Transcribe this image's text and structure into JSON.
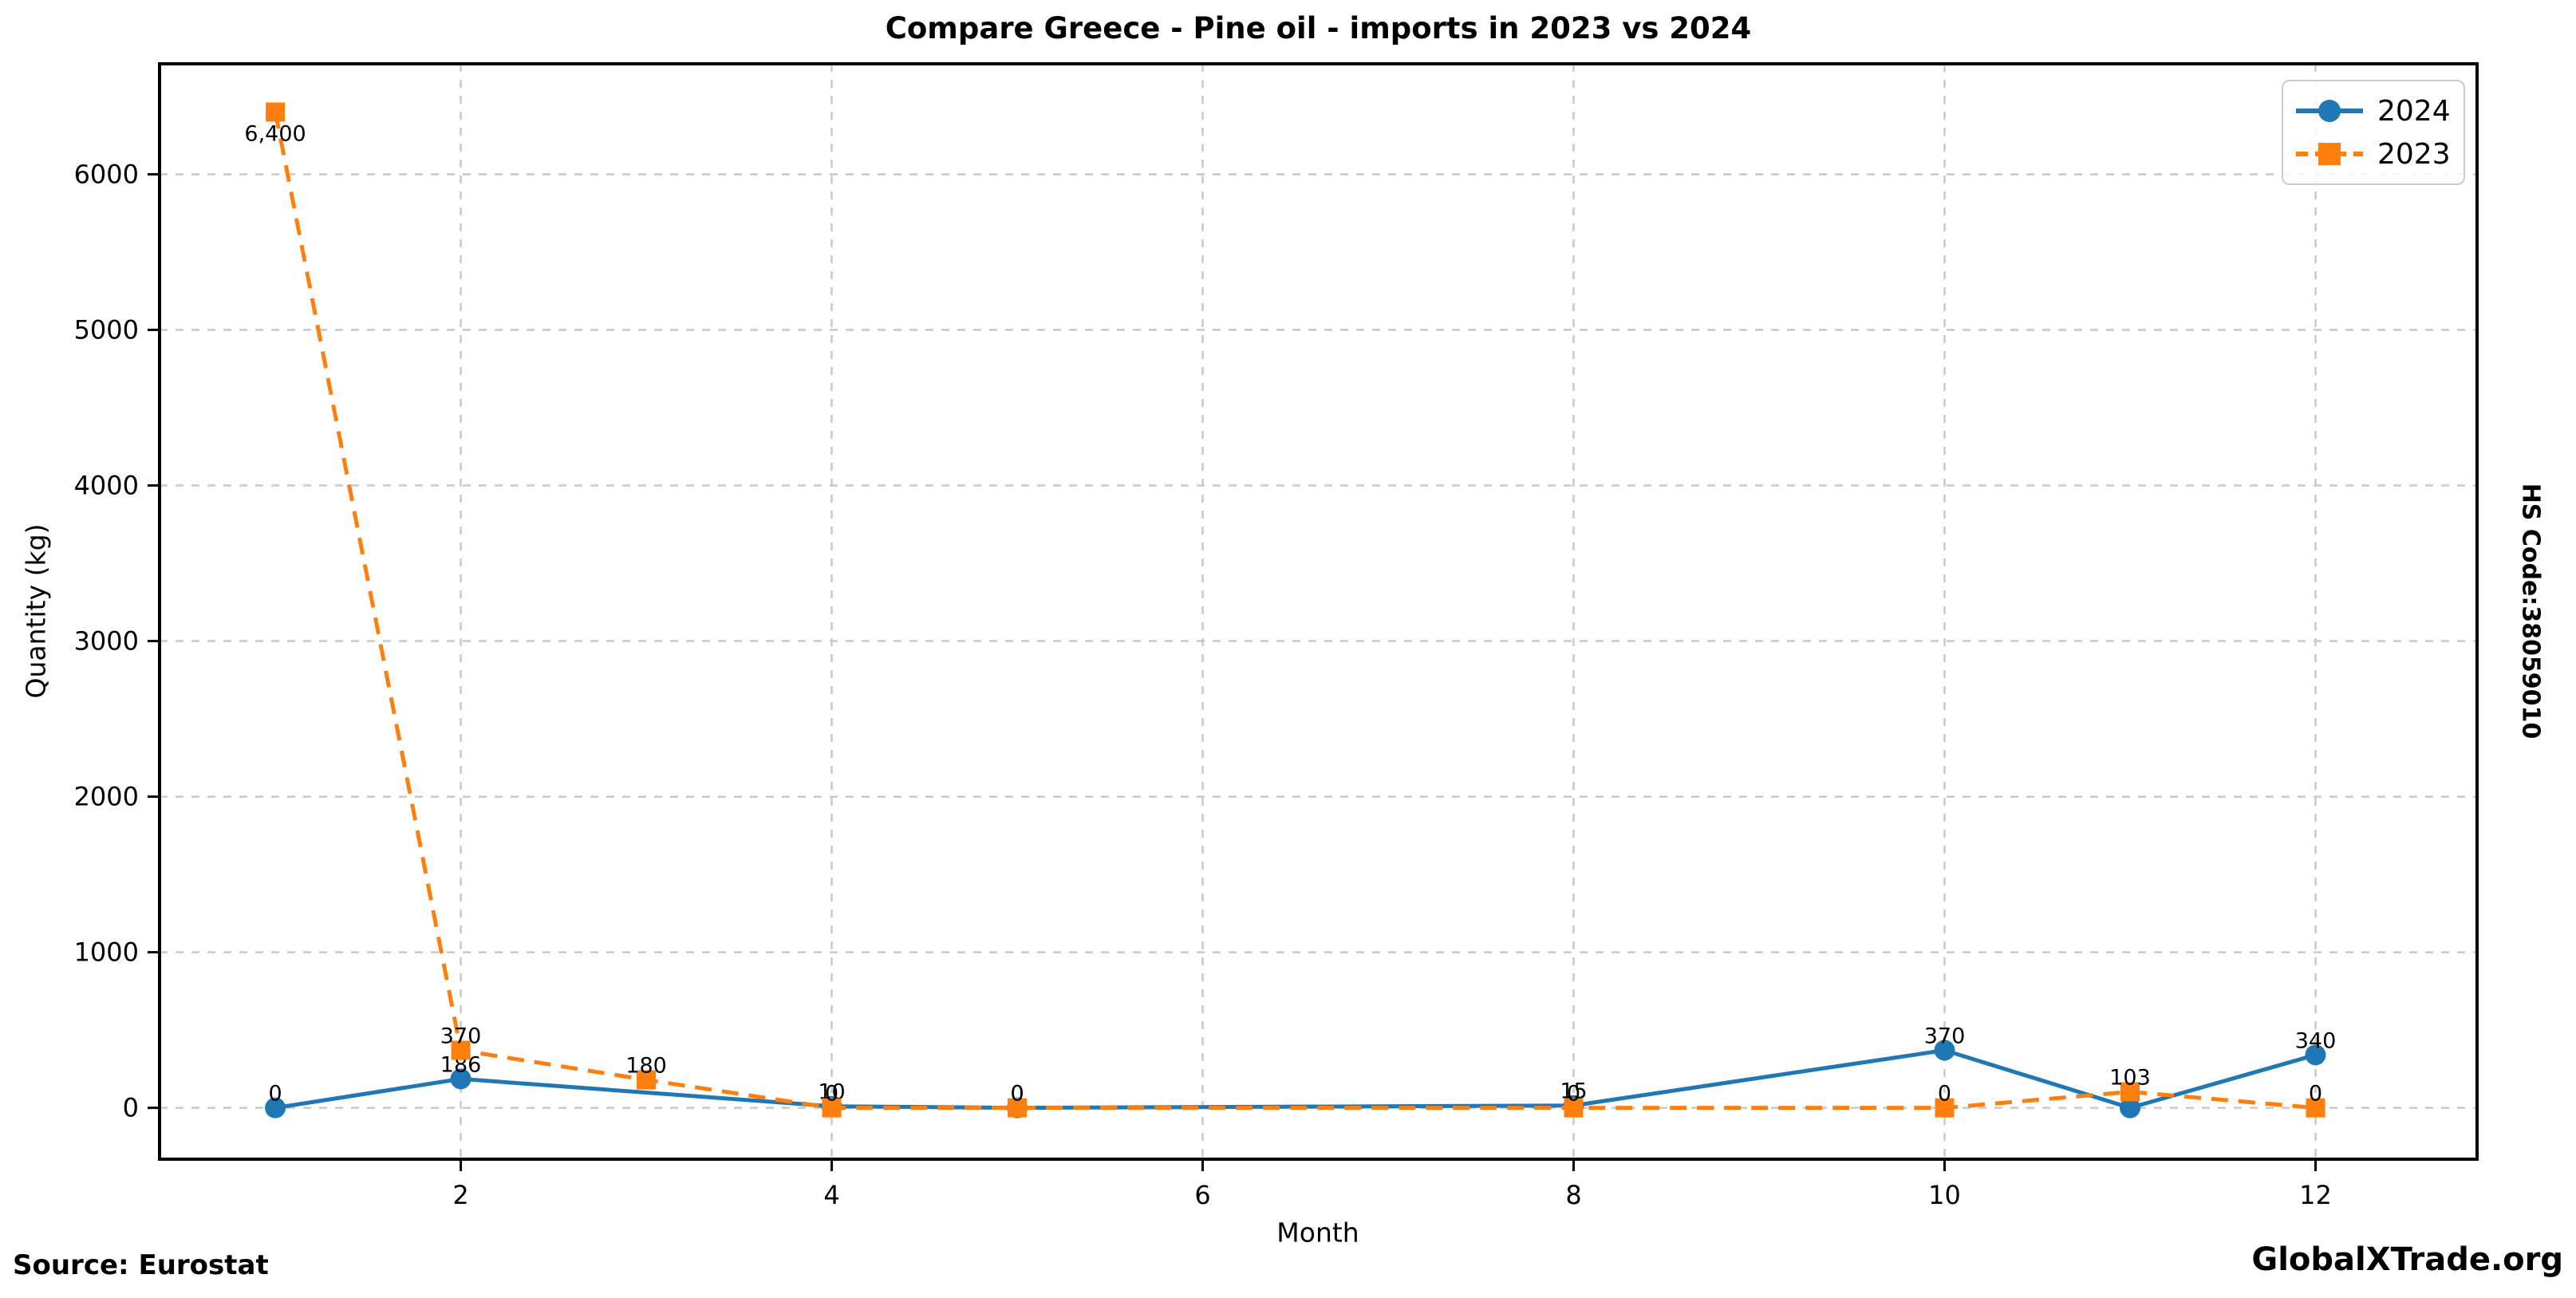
{
  "figure": {
    "source": "Source: Eurostat",
    "brand": "GlobalXTrade.org",
    "hs_code": "HS Code:38059010"
  },
  "chart_data": {
    "type": "line",
    "title": "Compare Greece - Pine oil - imports in 2023 vs 2024",
    "xlabel": "Month",
    "ylabel": "Quantity (kg)",
    "xlim": [
      0.376,
      12.871
    ],
    "ylim": [
      -330,
      6710
    ],
    "xticks": [
      2,
      4,
      6,
      8,
      10,
      12
    ],
    "yticks": [
      0,
      1000,
      2000,
      3000,
      4000,
      5000,
      6000
    ],
    "grid": true,
    "legend_position": "upper right",
    "series": [
      {
        "name": "2024",
        "color": "#1f77b4",
        "line_style": "solid",
        "marker": "circle",
        "x": [
          1,
          2,
          4,
          5,
          8,
          10,
          11,
          12
        ],
        "y": [
          0,
          186,
          10,
          0,
          15,
          370,
          0,
          340
        ],
        "labels": [
          "0",
          "186",
          "10",
          "0",
          "15",
          "370",
          "0",
          "340"
        ]
      },
      {
        "name": "2023",
        "color": "#ff7f0e",
        "line_style": "dashed",
        "marker": "square",
        "x": [
          1,
          2,
          3,
          4,
          5,
          8,
          10,
          11,
          12
        ],
        "y": [
          6400,
          370,
          180,
          0,
          0,
          0,
          0,
          103,
          0
        ],
        "labels": [
          "6,400",
          "370",
          "180",
          "0",
          "0",
          "0",
          "0",
          "103",
          "0"
        ]
      }
    ]
  }
}
